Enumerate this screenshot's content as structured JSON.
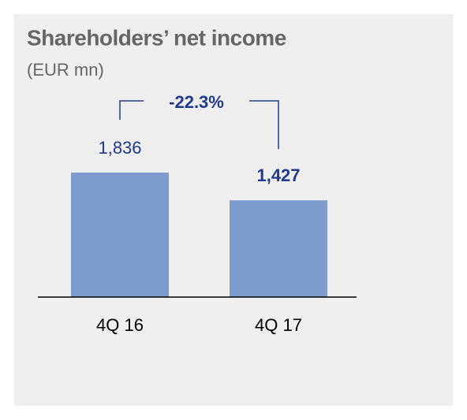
{
  "chart_data": {
    "type": "bar",
    "title": "Shareholders’ net income",
    "subtitle": "(EUR mn)",
    "categories": [
      "4Q 16",
      "4Q 17"
    ],
    "values": [
      1836,
      1427
    ],
    "value_labels": [
      "1,836",
      "1,427"
    ],
    "color": "#7f9ccf",
    "annotation": "-22.3%"
  }
}
